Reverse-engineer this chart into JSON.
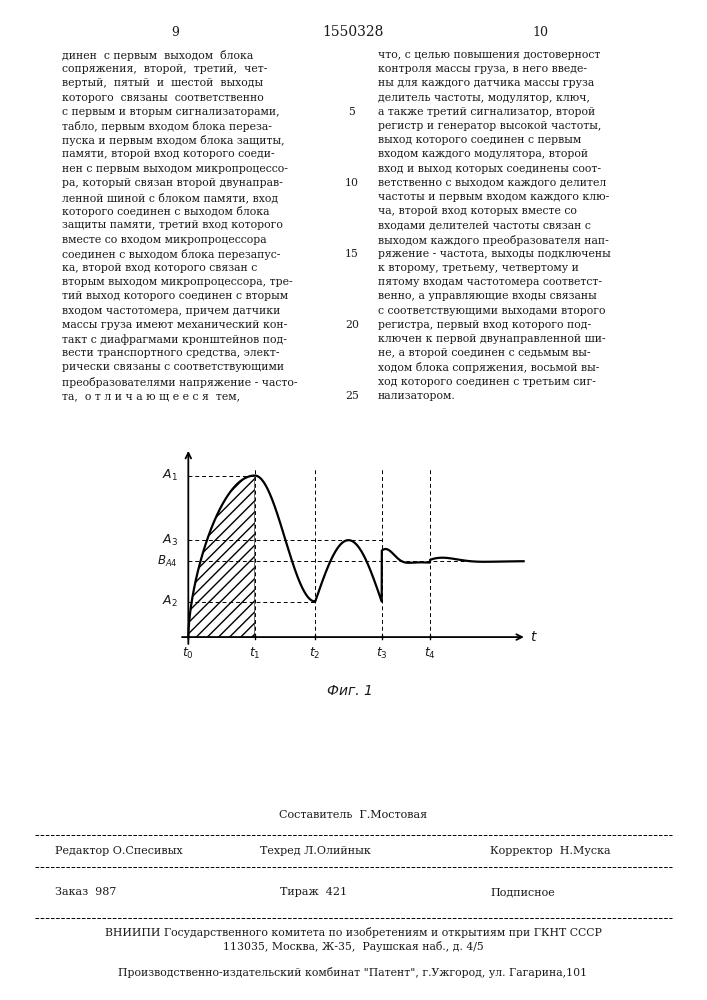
{
  "page_number_left": "9",
  "page_number_center": "1550328",
  "page_number_right": "10",
  "left_lines": [
    "динен  с первым  выходом  блока",
    "сопряжения,  второй,  третий,  чет-",
    "вертый,  пятый  и  шестой  выходы",
    "которого  связаны  соответственно",
    "с первым и вторым сигнализаторами,",
    "табло, первым входом блока переза-",
    "пуска и первым входом блока защиты,",
    "памяти, второй вход которого соеди-",
    "нен с первым выходом микропроцессо-",
    "ра, который связан второй двунаправ-",
    "ленной шиной с блоком памяти, вход",
    "которого соединен с выходом блока",
    "защиты памяти, третий вход которого",
    "вместе со входом микропроцессора",
    "соединен с выходом блока перезапус-",
    "ка, второй вход которого связан с",
    "вторым выходом микропроцессора, тре-",
    "тий выход которого соединен с вторым",
    "входом частотомера, причем датчики",
    "массы груза имеют механический кон-",
    "такт с диафрагмами кронштейнов под-",
    "вести транспортного средства, элект-",
    "рически связаны с соответствующими",
    "преобразователями напряжение - часто-",
    "та,  о т л и ч а ю щ е е с я  тем,"
  ],
  "right_lines": [
    "что, с целью повышения достоверност",
    "контроля массы груза, в него введе-",
    "ны для каждого датчика массы груза",
    "делитель частоты, модулятор, ключ,",
    "а также третий сигнализатор, второй",
    "регистр и генератор высокой частоты,",
    "выход которого соединен с первым",
    "входом каждого модулятора, второй",
    "вход и выход которых соединены соот-",
    "ветственно с выходом каждого делител",
    "частоты и первым входом каждого клю-",
    "ча, второй вход которых вместе со",
    "входами делителей частоты связан с",
    "выходом каждого преобразователя нап-",
    "ряжение - частота, выходы подключены",
    "к второму, третьему, четвертому и",
    "пятому входам частотомера соответст-",
    "венно, а управляющие входы связаны",
    "с соответствующими выходами второго",
    "регистра, первый вход которого под-",
    "ключен к первой двунаправленной ши-",
    "не, а второй соединен с седьмым вы-",
    "ходом блока сопряжения, восьмой вы-",
    "ход которого соединен с третьим сиг-",
    "нализатором."
  ],
  "line_numbers": [
    [
      5,
      4
    ],
    [
      10,
      9
    ],
    [
      15,
      14
    ],
    [
      20,
      19
    ],
    [
      25,
      24
    ]
  ],
  "footer_top": "Составитель  Г.Мостовая",
  "footer_editor": "Редактор О.Спесивых",
  "footer_tech": "Техред Л.Олийнык",
  "footer_corrector": "Корректор  Н.Муска",
  "footer_order": "Заказ  987",
  "footer_print": "Тираж  421",
  "footer_sign": "Подписное",
  "footer_org1": "ВНИИПИ Государственного комитета по изобретениям и открытиям при ГКНТ СССР",
  "footer_org2": "113035, Москва, Ж-35,  Раушская наб., д. 4/5",
  "footer_prod": "Производственно-издательский комбинат \"Патент\", г.Ужгород, ул. Гагарина,101",
  "bg_color": "#ffffff",
  "text_color": "#1a1a1a"
}
